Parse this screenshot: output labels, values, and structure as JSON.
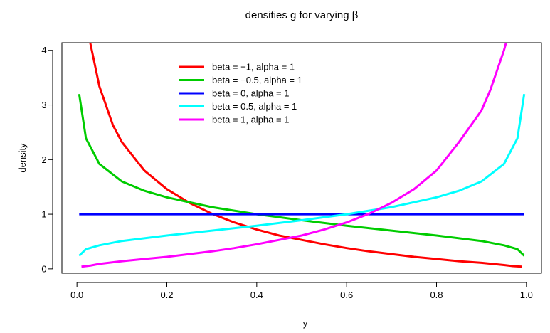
{
  "chart_data": {
    "type": "line",
    "title": "densities g for varying β",
    "xlabel": "y",
    "ylabel": "density",
    "xlim": [
      -0.0335,
      1.0335
    ],
    "ylim": [
      -0.08,
      4.14
    ],
    "x_ticks": [
      0.0,
      0.2,
      0.4,
      0.6,
      0.8,
      1.0
    ],
    "x_tick_labels": [
      "0.0",
      "0.2",
      "0.4",
      "0.6",
      "0.8",
      "1.0"
    ],
    "y_ticks": [
      0,
      1,
      2,
      3,
      4
    ],
    "y_tick_labels": [
      "0",
      "1",
      "2",
      "3",
      "4"
    ],
    "legend_position": "top-left inside plot",
    "grid": false,
    "series": [
      {
        "name": "beta = −1, alpha = 1",
        "color": "#ff0000",
        "x": [
          0.01,
          0.02,
          0.03,
          0.05,
          0.08,
          0.1,
          0.15,
          0.2,
          0.25,
          0.3,
          0.35,
          0.4,
          0.45,
          0.5,
          0.55,
          0.6,
          0.65,
          0.7,
          0.75,
          0.8,
          0.85,
          0.9,
          0.95,
          0.97,
          0.99
        ],
        "y": [
          4.55,
          4.55,
          4.12,
          3.34,
          2.63,
          2.32,
          1.8,
          1.46,
          1.21,
          1.01,
          0.85,
          0.72,
          0.61,
          0.53,
          0.45,
          0.38,
          0.32,
          0.27,
          0.22,
          0.18,
          0.14,
          0.11,
          0.07,
          0.05,
          0.04
        ]
      },
      {
        "name": "beta = −0.5, alpha = 1",
        "color": "#00cc00",
        "x": [
          0.005,
          0.02,
          0.05,
          0.1,
          0.15,
          0.2,
          0.3,
          0.4,
          0.5,
          0.6,
          0.7,
          0.8,
          0.9,
          0.95,
          0.98,
          0.995
        ],
        "y": [
          3.2,
          2.39,
          1.92,
          1.6,
          1.43,
          1.31,
          1.13,
          1.0,
          0.89,
          0.79,
          0.7,
          0.61,
          0.51,
          0.43,
          0.36,
          0.24
        ]
      },
      {
        "name": "beta = 0, alpha = 1",
        "color": "#0000ff",
        "x": [
          0.005,
          0.995
        ],
        "y": [
          1.0,
          1.0
        ]
      },
      {
        "name": "beta = 0.5, alpha = 1",
        "color": "#00ffff",
        "x": [
          0.005,
          0.02,
          0.05,
          0.1,
          0.2,
          0.3,
          0.4,
          0.5,
          0.6,
          0.7,
          0.8,
          0.85,
          0.9,
          0.95,
          0.98,
          0.995
        ],
        "y": [
          0.24,
          0.36,
          0.43,
          0.51,
          0.61,
          0.7,
          0.79,
          0.89,
          1.0,
          1.13,
          1.31,
          1.43,
          1.6,
          1.92,
          2.39,
          3.2
        ]
      },
      {
        "name": "beta = 1, alpha = 1",
        "color": "#ff00ff",
        "x": [
          0.01,
          0.03,
          0.05,
          0.1,
          0.15,
          0.2,
          0.25,
          0.3,
          0.35,
          0.4,
          0.45,
          0.5,
          0.55,
          0.6,
          0.65,
          0.7,
          0.75,
          0.8,
          0.85,
          0.9,
          0.92,
          0.95,
          0.97,
          0.98,
          0.99
        ],
        "y": [
          0.04,
          0.06,
          0.09,
          0.14,
          0.18,
          0.22,
          0.27,
          0.32,
          0.38,
          0.45,
          0.53,
          0.61,
          0.72,
          0.85,
          1.01,
          1.21,
          1.46,
          1.8,
          2.32,
          2.9,
          3.28,
          4.0,
          4.6,
          4.6,
          4.6
        ]
      }
    ]
  }
}
